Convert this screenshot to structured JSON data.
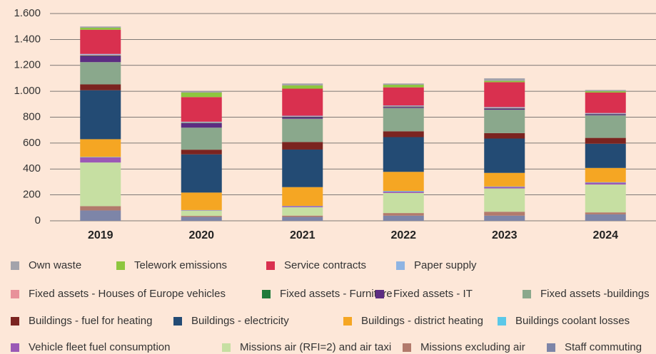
{
  "chart_data": {
    "type": "stacked_bar",
    "categories": [
      "2019",
      "2020",
      "2021",
      "2022",
      "2023",
      "2024"
    ],
    "ylim": [
      0,
      1600
    ],
    "yticks": [
      0,
      200,
      400,
      600,
      800,
      {
        "value": 1000,
        "label": "1.000"
      },
      {
        "value": 1200,
        "label": "1.200"
      },
      {
        "value": 1400,
        "label": "1.400"
      },
      {
        "value": 1600,
        "label": "1.600"
      }
    ],
    "grid": true,
    "series": [
      {
        "name": "Own waste",
        "color": "#a3a3ab",
        "values": [
          10,
          10,
          15,
          10,
          20,
          10
        ]
      },
      {
        "name": "Telework emissions",
        "color": "#8dc63f",
        "values": [
          15,
          35,
          25,
          20,
          10,
          10
        ]
      },
      {
        "name": "Service contracts",
        "color": "#d9304f",
        "values": [
          187,
          190,
          209,
          140,
          192,
          158
        ]
      },
      {
        "name": "Paper supply",
        "color": "#8eb4e3",
        "values": [
          6,
          5,
          5,
          5,
          5,
          5
        ]
      },
      {
        "name": "Fixed assets - Houses of Europe vehicles",
        "color": "#e8919a",
        "values": [
          5,
          3,
          3,
          3,
          3,
          2
        ]
      },
      {
        "name": "Fixed assets - Furniture",
        "color": "#1e7b3a",
        "values": [
          4,
          3,
          3,
          3,
          3,
          2
        ]
      },
      {
        "name": "Fixed assets - IT",
        "color": "#5c2d82",
        "values": [
          48,
          35,
          12,
          8,
          10,
          8
        ]
      },
      {
        "name": "Fixed assets -buildings",
        "color": "#8aa88c",
        "values": [
          172,
          170,
          180,
          180,
          180,
          175
        ]
      },
      {
        "name": "Buildings - fuel for heating",
        "color": "#7b2420",
        "values": [
          45,
          36,
          58,
          45,
          42,
          45
        ]
      },
      {
        "name": "Buildings - electricity",
        "color": "#234b74",
        "values": [
          378,
          295,
          290,
          268,
          265,
          187
        ]
      },
      {
        "name": "Buildings - district heating",
        "color": "#f5a623",
        "values": [
          137,
          135,
          145,
          148,
          105,
          110
        ]
      },
      {
        "name": "Buildings coolant losses",
        "color": "#5bc8e8",
        "values": [
          3,
          2,
          2,
          5,
          3,
          3
        ]
      },
      {
        "name": "Vehicle fleet fuel consumption",
        "color": "#9b59b6",
        "values": [
          40,
          3,
          8,
          10,
          12,
          15
        ]
      },
      {
        "name": "Missions air (RFI=2) and air taxi",
        "color": "#c6dfa2",
        "values": [
          337,
          40,
          65,
          155,
          180,
          215
        ]
      },
      {
        "name": "Missions excluding air",
        "color": "#b27a6c",
        "values": [
          33,
          8,
          10,
          20,
          30,
          15
        ]
      },
      {
        "name": "Staff commuting",
        "color": "#7d85a8",
        "values": [
          80,
          30,
          30,
          40,
          40,
          50
        ]
      }
    ]
  }
}
